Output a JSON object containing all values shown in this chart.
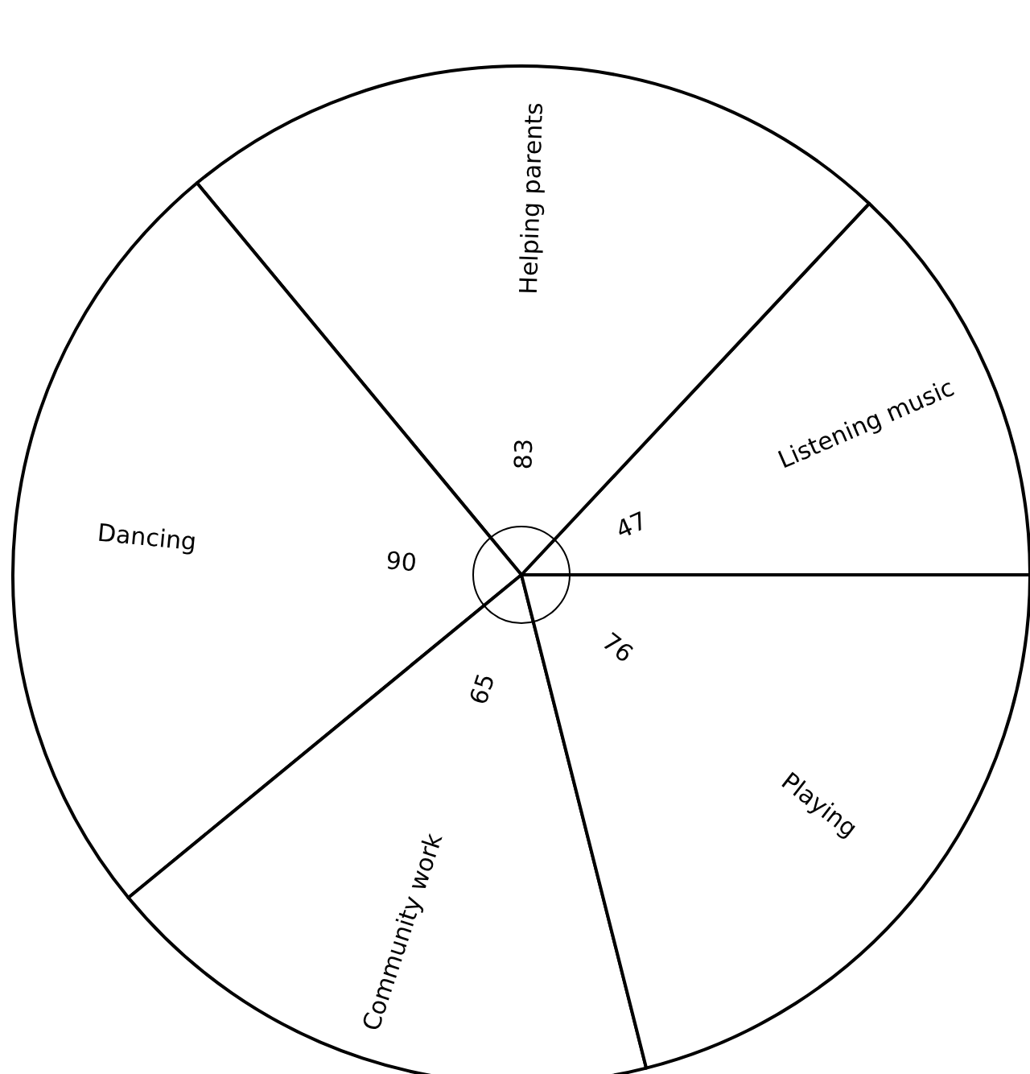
{
  "chart_data": {
    "type": "pie",
    "categories": [
      "Listening music",
      "Helping parents",
      "Dancing",
      "Community work",
      "Playing"
    ],
    "values": [
      47,
      83,
      90,
      65,
      76
    ],
    "colors": [
      "#ffffff",
      "#ffffff",
      "#ffffff",
      "#ffffff",
      "#ffffff"
    ],
    "data_labels": true
  }
}
